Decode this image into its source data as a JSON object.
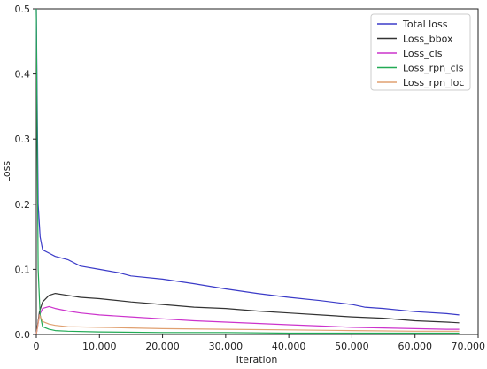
{
  "chart_data": {
    "type": "line",
    "xlabel": "Iteration",
    "ylabel": "Loss",
    "xlim": [
      0,
      70000
    ],
    "ylim": [
      0,
      0.5
    ],
    "grid": false,
    "legend_position": "top-right",
    "x_ticks": [
      0,
      10000,
      20000,
      30000,
      40000,
      50000,
      60000,
      70000
    ],
    "x_tick_labels": [
      "0",
      "10,000",
      "20,000",
      "30,000",
      "40,000",
      "50,000",
      "60,000",
      "70,000"
    ],
    "y_ticks": [
      0.0,
      0.1,
      0.2,
      0.3,
      0.4,
      0.5
    ],
    "y_tick_labels": [
      "0.0",
      "0.1",
      "0.2",
      "0.3",
      "0.4",
      "0.5"
    ],
    "series": [
      {
        "name": "Total loss",
        "color": "#3b3bc8",
        "x": [
          0,
          300,
          600,
          1000,
          2000,
          3000,
          5000,
          7000,
          10000,
          13000,
          15000,
          20000,
          25000,
          30000,
          35000,
          40000,
          45000,
          50000,
          52000,
          55000,
          60000,
          65000,
          67000
        ],
        "y": [
          0.5,
          0.2,
          0.15,
          0.13,
          0.125,
          0.12,
          0.115,
          0.105,
          0.1,
          0.095,
          0.09,
          0.085,
          0.078,
          0.07,
          0.063,
          0.057,
          0.052,
          0.046,
          0.042,
          0.04,
          0.035,
          0.032,
          0.03
        ]
      },
      {
        "name": "Loss_bbox",
        "color": "#333333",
        "x": [
          0,
          500,
          1000,
          2000,
          3000,
          5000,
          7000,
          10000,
          15000,
          20000,
          25000,
          30000,
          35000,
          40000,
          45000,
          50000,
          55000,
          60000,
          65000,
          67000
        ],
        "y": [
          0.0,
          0.035,
          0.05,
          0.06,
          0.063,
          0.06,
          0.057,
          0.055,
          0.05,
          0.046,
          0.042,
          0.04,
          0.036,
          0.033,
          0.03,
          0.027,
          0.025,
          0.021,
          0.019,
          0.018
        ]
      },
      {
        "name": "Loss_cls",
        "color": "#cc33cc",
        "x": [
          0,
          500,
          1000,
          2000,
          3000,
          5000,
          7000,
          10000,
          15000,
          20000,
          25000,
          30000,
          35000,
          40000,
          45000,
          50000,
          55000,
          60000,
          65000,
          67000
        ],
        "y": [
          0.0,
          0.03,
          0.04,
          0.043,
          0.04,
          0.036,
          0.033,
          0.03,
          0.027,
          0.024,
          0.021,
          0.019,
          0.017,
          0.015,
          0.013,
          0.011,
          0.01,
          0.009,
          0.008,
          0.008
        ]
      },
      {
        "name": "Loss_rpn_cls",
        "color": "#22aa55",
        "x": [
          0,
          300,
          600,
          1000,
          2000,
          3000,
          5000,
          10000,
          20000,
          30000,
          40000,
          50000,
          60000,
          67000
        ],
        "y": [
          0.5,
          0.1,
          0.03,
          0.012,
          0.008,
          0.006,
          0.005,
          0.004,
          0.003,
          0.003,
          0.002,
          0.002,
          0.002,
          0.002
        ]
      },
      {
        "name": "Loss_rpn_loc",
        "color": "#e0a070",
        "x": [
          0,
          500,
          1000,
          2000,
          3000,
          5000,
          10000,
          15000,
          20000,
          30000,
          40000,
          50000,
          60000,
          67000
        ],
        "y": [
          0.0,
          0.03,
          0.02,
          0.016,
          0.014,
          0.012,
          0.011,
          0.01,
          0.009,
          0.008,
          0.007,
          0.006,
          0.005,
          0.005
        ]
      }
    ]
  }
}
